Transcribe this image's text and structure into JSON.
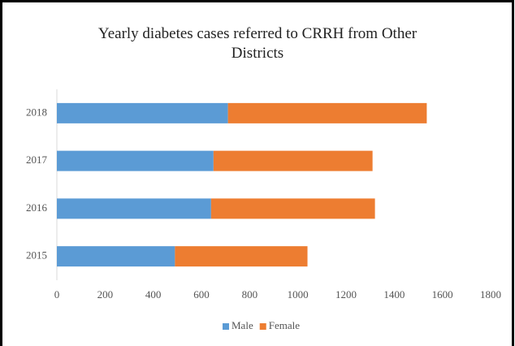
{
  "chart_data": {
    "type": "stacked-barh",
    "title": "Yearly diabetes cases referred to CRRH from Other Districts",
    "categories": [
      "2015",
      "2016",
      "2017",
      "2018"
    ],
    "series": [
      {
        "name": "Male",
        "color": "#5b9bd5",
        "values": [
          490,
          640,
          650,
          710
        ]
      },
      {
        "name": "Female",
        "color": "#ed7d31",
        "values": [
          550,
          680,
          660,
          825
        ]
      }
    ],
    "xlim": [
      0,
      1800
    ],
    "xticks": [
      0,
      200,
      400,
      600,
      800,
      1000,
      1200,
      1400,
      1600,
      1800
    ],
    "grid": false,
    "legend": "bottom"
  }
}
